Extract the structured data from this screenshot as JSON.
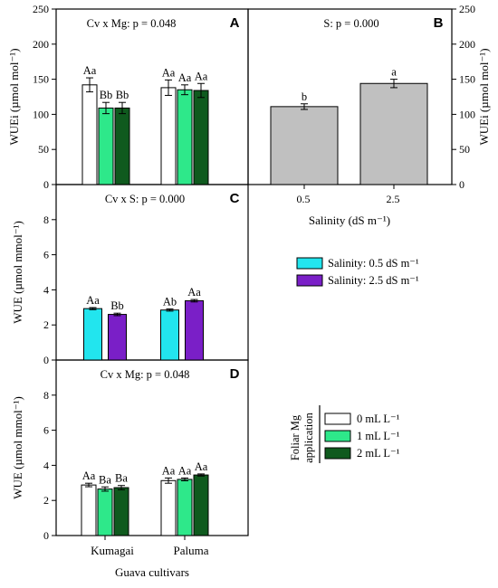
{
  "chart_data": [
    {
      "panel": "A",
      "type": "bar",
      "annotation": "Cv x Mg: p = 0.048",
      "ylabel": "WUEi (µmol mol⁻¹)",
      "ylim": [
        0,
        250
      ],
      "yticks": [
        0,
        50,
        100,
        150,
        200,
        250
      ],
      "categories": [
        "Kumagai",
        "Paluma"
      ],
      "series": [
        {
          "name": "0 mL L⁻¹",
          "color": "#ffffff",
          "values": [
            142,
            138
          ],
          "errors": [
            10,
            11
          ],
          "labels": [
            "Aa",
            "Aa"
          ]
        },
        {
          "name": "1 mL L⁻¹",
          "color": "#2ee88a",
          "values": [
            109,
            135
          ],
          "errors": [
            8,
            7
          ],
          "labels": [
            "Bb",
            "Aa"
          ]
        },
        {
          "name": "2 mL L⁻¹",
          "color": "#0f5a1e",
          "values": [
            109,
            134
          ],
          "errors": [
            8,
            10
          ],
          "labels": [
            "Bb",
            "Aa"
          ]
        }
      ]
    },
    {
      "panel": "B",
      "type": "bar",
      "annotation": "S: p = 0.000",
      "ylabel": "WUEi (µmol mol⁻¹)",
      "xlabel": "Salinity (dS m⁻¹)",
      "ylim": [
        0,
        250
      ],
      "yticks": [
        0,
        50,
        100,
        150,
        200,
        250
      ],
      "categories": [
        "0.5",
        "2.5"
      ],
      "values": [
        111,
        144
      ],
      "errors": [
        4,
        6
      ],
      "labels": [
        "b",
        "a"
      ],
      "color": "#c0c0c0"
    },
    {
      "panel": "C",
      "type": "bar",
      "annotation": "Cv x S: p = 0.000",
      "ylabel": "WUE (µmol mmol⁻¹)",
      "ylim": [
        0,
        10
      ],
      "yticks": [
        0,
        2,
        4,
        6,
        8
      ],
      "categories": [
        "Kumagai",
        "Paluma"
      ],
      "series": [
        {
          "name": "Salinity: 0.5 dS m⁻¹",
          "color": "#22e5ee",
          "values": [
            2.93,
            2.85
          ],
          "errors": [
            0.06,
            0.06
          ],
          "labels": [
            "Aa",
            "Ab"
          ]
        },
        {
          "name": "Salinity: 2.5 dS m⁻¹",
          "color": "#7a1fc7",
          "values": [
            2.6,
            3.38
          ],
          "errors": [
            0.07,
            0.07
          ],
          "labels": [
            "Bb",
            "Aa"
          ]
        }
      ]
    },
    {
      "panel": "D",
      "type": "bar",
      "annotation": "Cv x Mg: p = 0.048",
      "ylabel": "WUE (µmol mmol⁻¹)",
      "xlabel": "Guava cultivars",
      "ylim": [
        0,
        10
      ],
      "yticks": [
        0,
        2,
        4,
        6,
        8
      ],
      "categories": [
        "Kumagai",
        "Paluma"
      ],
      "series": [
        {
          "name": "0 mL L⁻¹",
          "color": "#ffffff",
          "values": [
            2.88,
            3.13
          ],
          "errors": [
            0.1,
            0.15
          ],
          "labels": [
            "Aa",
            "Aa"
          ]
        },
        {
          "name": "1 mL L⁻¹",
          "color": "#2ee88a",
          "values": [
            2.65,
            3.2
          ],
          "errors": [
            0.12,
            0.08
          ],
          "labels": [
            "Ba",
            "Aa"
          ]
        },
        {
          "name": "2 mL L⁻¹",
          "color": "#0f5a1e",
          "values": [
            2.73,
            3.45
          ],
          "errors": [
            0.12,
            0.06
          ],
          "labels": [
            "Ba",
            "Aa"
          ]
        }
      ]
    }
  ],
  "legend_salinity": [
    "Salinity: 0.5 dS m⁻¹",
    "Salinity: 2.5 dS m⁻¹"
  ],
  "legend_mg_title_line1": "Foliar Mg",
  "legend_mg_title_line2": "application",
  "legend_mg": [
    "0 mL L⁻¹",
    "1 mL L⁻¹",
    "2 mL L⁻¹"
  ],
  "colors": {
    "frame": "#000000",
    "bar_outline": "#000000"
  }
}
